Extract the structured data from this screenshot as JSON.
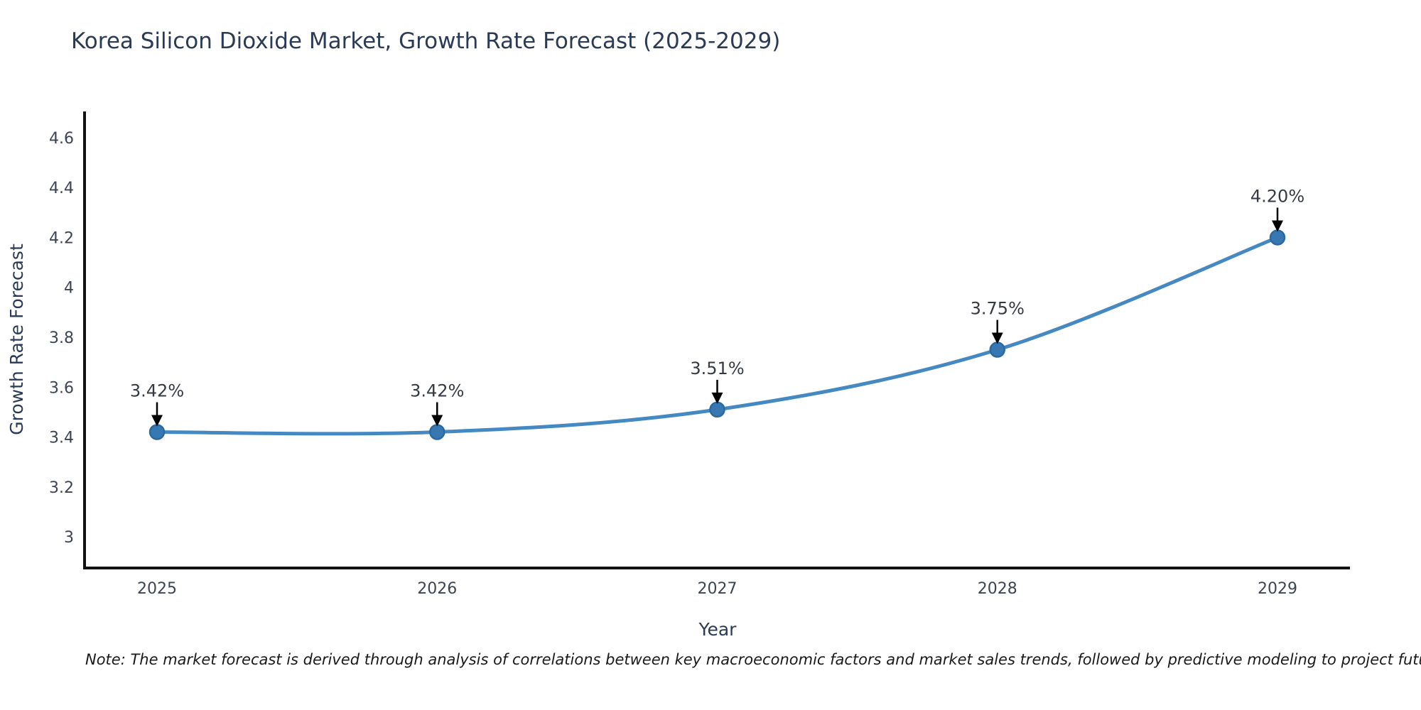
{
  "title": "Korea Silicon Dioxide Market, Growth Rate Forecast (2025-2029)",
  "note": "Note: The market forecast is derived through analysis of correlations between key macroeconomic factors and market sales trends, followed by predictive modeling to project future sales",
  "chart_data": {
    "type": "line",
    "title": "Korea Silicon Dioxide Market, Growth Rate Forecast (2025-2029)",
    "xlabel": "Year",
    "ylabel": "Growth Rate Forecast",
    "categories": [
      "2025",
      "2026",
      "2027",
      "2028",
      "2029"
    ],
    "series": [
      {
        "name": "Growth Rate Forecast",
        "values": [
          3.42,
          3.42,
          3.51,
          3.75,
          4.2
        ]
      }
    ],
    "point_labels": [
      "3.42%",
      "3.42%",
      "3.51%",
      "3.75%",
      "4.20%"
    ],
    "ytick_labels": [
      "3",
      "3.2",
      "3.4",
      "3.6",
      "3.8",
      "4",
      "4.2",
      "4.4",
      "4.6"
    ],
    "ylim": [
      2.875,
      4.705
    ],
    "grid": false,
    "legend": "none",
    "annotation_style": "black-arrow-down-to-point",
    "line_shape": "smooth-spline",
    "colors": {
      "line": "#4589c2",
      "marker": "#3778b3",
      "marker_edge": "#2b699f",
      "axis": "#111111",
      "title_text": "#2b3a55",
      "tick_text": "#3d4454",
      "annotation_text": "#363b43",
      "arrow": "#000000",
      "background": "#ffffff"
    }
  }
}
